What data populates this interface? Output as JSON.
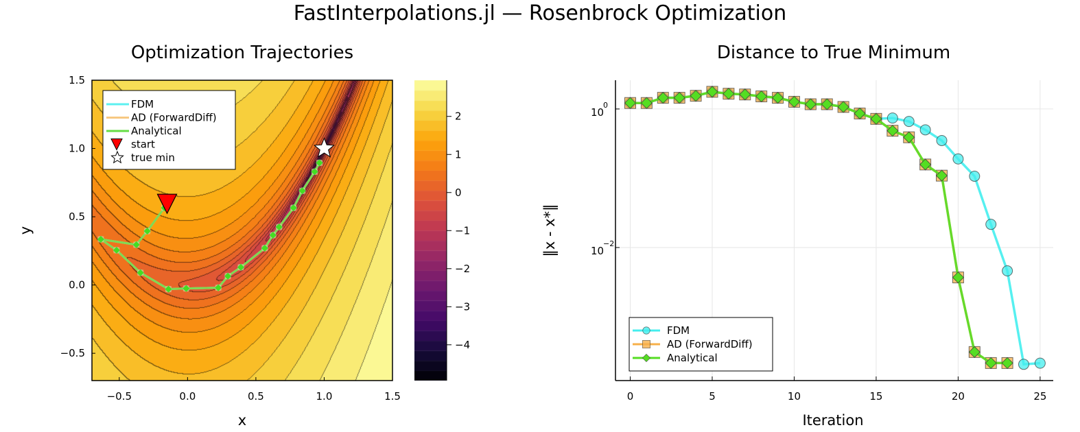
{
  "title": "FastInterpolations.jl — Rosenbrock Optimization",
  "chart_data": [
    {
      "type": "contour",
      "title": "Optimization Trajectories",
      "xlabel": "x",
      "ylabel": "y",
      "xlim": [
        -0.7,
        1.5
      ],
      "ylim": [
        -0.7,
        1.5
      ],
      "xticks": [
        "−0.5",
        "0.0",
        "0.5",
        "1.0",
        "1.5"
      ],
      "xtick_values": [
        -0.5,
        0.0,
        0.5,
        1.0,
        1.5
      ],
      "yticks": [
        "−0.5",
        "0.0",
        "0.5",
        "1.0",
        "1.5"
      ],
      "ytick_values": [
        -0.5,
        0.0,
        0.5,
        1.0,
        1.5
      ],
      "colormap": "inferno",
      "colorbar": {
        "range": [
          -4.94,
          2.95
        ],
        "ticks": [
          "−4",
          "−3",
          "−2",
          "−1",
          "0",
          "1",
          "2"
        ],
        "tick_values": [
          -4,
          -3,
          -2,
          -1,
          0,
          1,
          2
        ]
      },
      "legend_position": "top-left",
      "series": [
        {
          "name": "FDM",
          "color": "#5cf0f0"
        },
        {
          "name": "AD (ForwardDiff)",
          "color": "#f7c882"
        },
        {
          "name": "Analytical",
          "color": "#66dd44"
        },
        {
          "name": "start",
          "color": "#ff0000",
          "marker": "triangle-down"
        },
        {
          "name": "true min",
          "color": "#ffffff",
          "marker": "star"
        }
      ],
      "trajectory": {
        "x": [
          -0.17,
          -0.295,
          -0.375,
          -0.635,
          -0.52,
          -0.345,
          -0.14,
          -0.01,
          0.225,
          0.295,
          0.39,
          0.565,
          0.625,
          0.67,
          0.775,
          0.84,
          0.93,
          0.965
        ],
        "y": [
          0.565,
          0.395,
          0.295,
          0.335,
          0.255,
          0.09,
          -0.03,
          -0.025,
          -0.02,
          0.065,
          0.13,
          0.27,
          0.365,
          0.425,
          0.565,
          0.69,
          0.83,
          0.895
        ]
      },
      "start": [
        -0.15,
        0.6
      ],
      "true_min": [
        1.0,
        1.0
      ]
    },
    {
      "type": "line",
      "title": "Distance to True Minimum",
      "xlabel": "Iteration",
      "ylabel": "‖x - x*‖",
      "yscale": "log",
      "xlim": [
        -0.9,
        25.8
      ],
      "ylim": [
        0.00012,
        2.6
      ],
      "xticks": [
        "0",
        "5",
        "10",
        "15",
        "20",
        "25"
      ],
      "xtick_values": [
        0,
        5,
        10,
        15,
        20,
        25
      ],
      "yticks": [
        {
          "base": "10",
          "exp": "0",
          "value": 1
        },
        {
          "base": "10",
          "exp": "−2",
          "value": 0.01
        }
      ],
      "grid": true,
      "legend_position": "bottom-left",
      "series": [
        {
          "name": "FDM",
          "color": "#44eeee",
          "marker": "circle",
          "x": [
            0,
            1,
            2,
            3,
            4,
            5,
            6,
            7,
            8,
            9,
            10,
            11,
            12,
            13,
            14,
            15,
            16,
            17,
            18,
            19,
            20,
            21,
            22,
            23,
            24,
            25
          ],
          "y": [
            1.22,
            1.22,
            1.45,
            1.45,
            1.55,
            1.77,
            1.66,
            1.62,
            1.52,
            1.45,
            1.27,
            1.17,
            1.17,
            1.07,
            0.86,
            0.72,
            0.74,
            0.66,
            0.5,
            0.35,
            0.19,
            0.107,
            0.0216,
            0.0046,
            0.000206,
            0.000214
          ]
        },
        {
          "name": "AD (ForwardDiff)",
          "color": "#f7b04a",
          "marker": "square",
          "x": [
            0,
            1,
            2,
            3,
            4,
            5,
            6,
            7,
            8,
            9,
            10,
            11,
            12,
            13,
            14,
            15,
            16,
            17,
            18,
            19,
            20,
            21,
            22,
            23
          ],
          "y": [
            1.22,
            1.22,
            1.45,
            1.45,
            1.55,
            1.77,
            1.66,
            1.62,
            1.52,
            1.45,
            1.27,
            1.17,
            1.17,
            1.07,
            0.86,
            0.72,
            0.485,
            0.39,
            0.158,
            0.109,
            0.0037,
            0.00031,
            0.000215,
            0.000215
          ]
        },
        {
          "name": "Analytical",
          "color": "#55dd22",
          "marker": "diamond",
          "x": [
            0,
            1,
            2,
            3,
            4,
            5,
            6,
            7,
            8,
            9,
            10,
            11,
            12,
            13,
            14,
            15,
            16,
            17,
            18,
            19,
            20,
            21,
            22,
            23
          ],
          "y": [
            1.22,
            1.22,
            1.45,
            1.45,
            1.55,
            1.77,
            1.66,
            1.62,
            1.52,
            1.45,
            1.27,
            1.17,
            1.17,
            1.07,
            0.86,
            0.72,
            0.485,
            0.39,
            0.158,
            0.109,
            0.0037,
            0.00031,
            0.000215,
            0.000215
          ]
        }
      ]
    }
  ]
}
